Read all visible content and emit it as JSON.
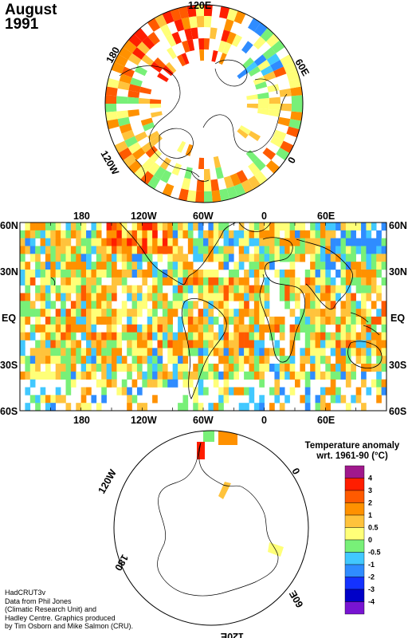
{
  "title": {
    "month": "August",
    "year": "1991"
  },
  "credits": [
    "HadCRUT3v",
    "Data from Phil Jones",
    "(Climatic Research Unit) and",
    "Hadley Centre.  Graphics produced",
    "by Tim Osborn and Mike Salmon (CRU)."
  ],
  "legend": {
    "title_line1": "Temperature anomaly",
    "title_line2": "wrt. 1961-90  (°C)",
    "bins": [
      {
        "color": "#a0188c",
        "label": "4"
      },
      {
        "color": "#ff1e00",
        "label": "3"
      },
      {
        "color": "#ff5a00",
        "label": "2"
      },
      {
        "color": "#ff9100",
        "label": "1"
      },
      {
        "color": "#ffc33c",
        "label": "0.5"
      },
      {
        "color": "#ffff78",
        "label": "0"
      },
      {
        "color": "#78f078",
        "label": "-0.5"
      },
      {
        "color": "#41c8ff",
        "label": "-1"
      },
      {
        "color": "#2f8cff",
        "label": "-2"
      },
      {
        "color": "#1432ff",
        "label": "-3"
      },
      {
        "color": "#0000c8",
        "label": "-4"
      },
      {
        "color": "#7814d2",
        "label": ""
      }
    ]
  },
  "north_polar": {
    "labels": [
      "120E",
      "60E",
      "0",
      "120W",
      "180"
    ]
  },
  "south_polar": {
    "labels": [
      "120W",
      "0",
      "60E",
      "180",
      "120E"
    ]
  },
  "map": {
    "lon_labels": [
      "180",
      "120W",
      "60W",
      "0",
      "60E"
    ],
    "lat_labels": [
      "60N",
      "30N",
      "EQ",
      "30S",
      "60S"
    ]
  },
  "chart_data": {
    "type": "heatmap",
    "title": "August 1991",
    "description_units": "Temperature anomaly wrt. 1961-90 (°C)",
    "color_bins": [
      4,
      3,
      2,
      1,
      0.5,
      0,
      -0.5,
      -1,
      -2,
      -3,
      -4
    ]
  }
}
